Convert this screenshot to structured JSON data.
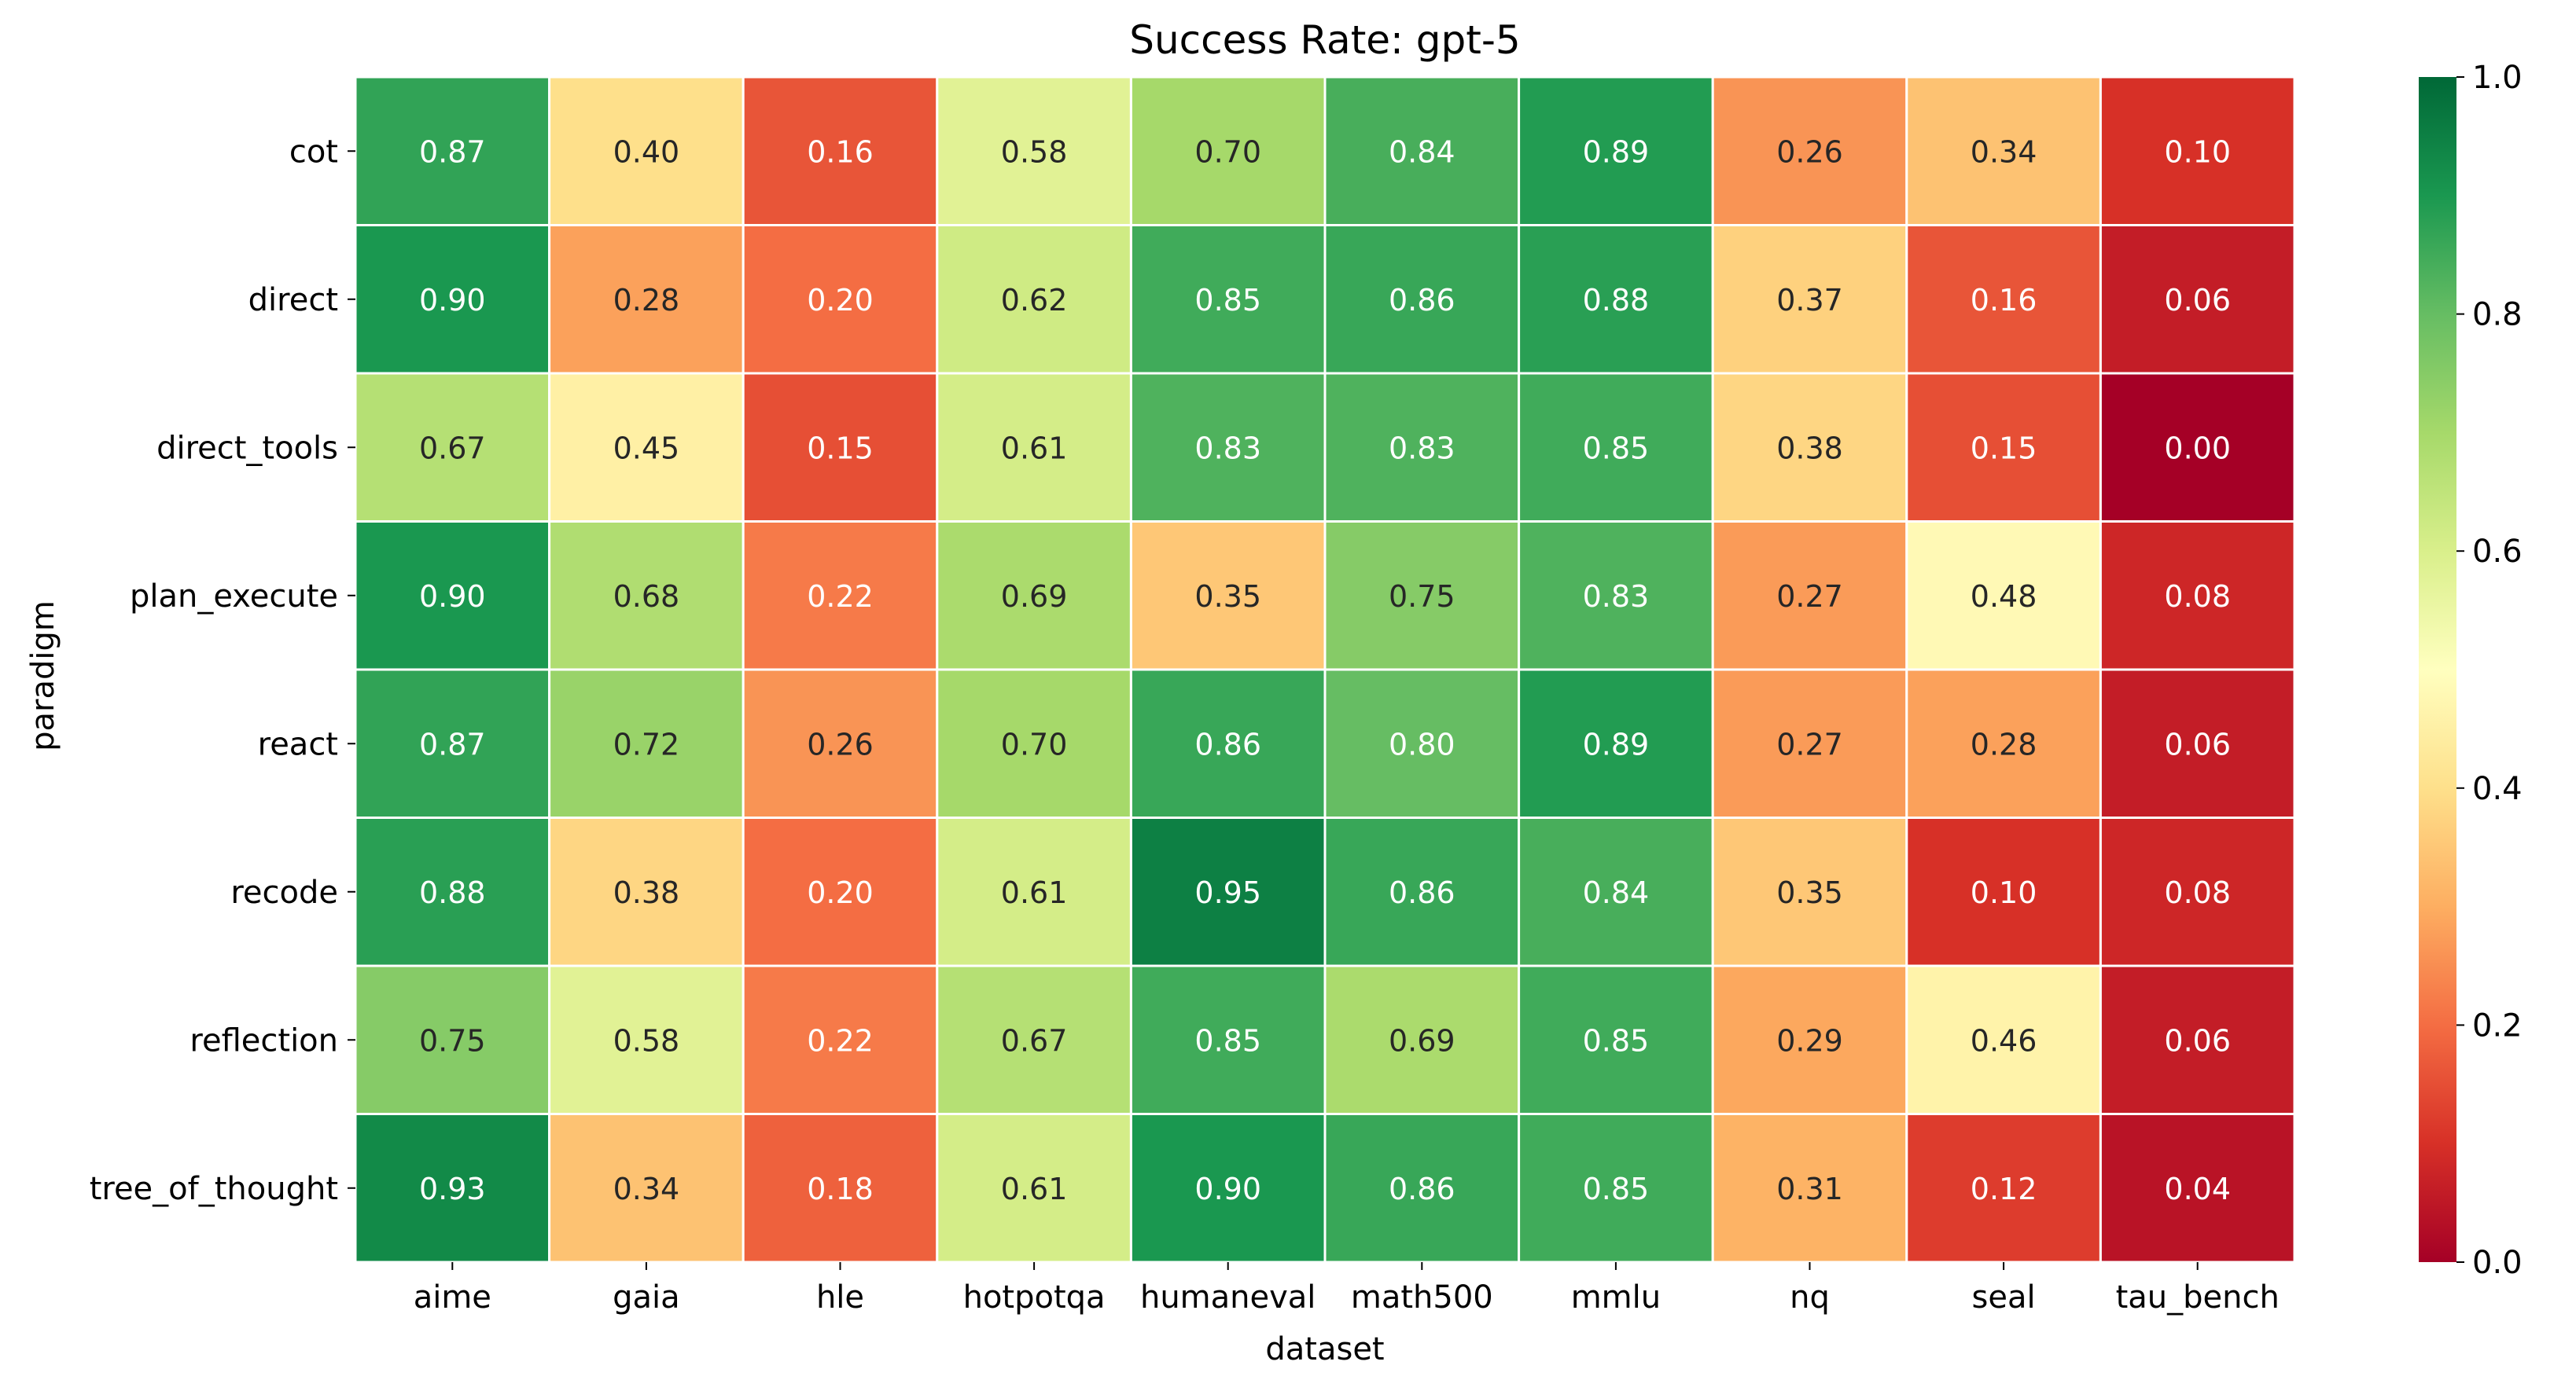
{
  "chart_data": {
    "type": "heatmap",
    "title": "Success Rate: gpt-5",
    "xlabel": "dataset",
    "ylabel": "paradigm",
    "x_categories": [
      "aime",
      "gaia",
      "hle",
      "hotpotqa",
      "humaneval",
      "math500",
      "mmlu",
      "nq",
      "seal",
      "tau_bench"
    ],
    "y_categories": [
      "cot",
      "direct",
      "direct_tools",
      "plan_execute",
      "react",
      "recode",
      "reflection",
      "tree_of_thought"
    ],
    "values": [
      [
        0.87,
        0.4,
        0.16,
        0.58,
        0.7,
        0.84,
        0.89,
        0.26,
        0.34,
        0.1
      ],
      [
        0.9,
        0.28,
        0.2,
        0.62,
        0.85,
        0.86,
        0.88,
        0.37,
        0.16,
        0.06
      ],
      [
        0.67,
        0.45,
        0.15,
        0.61,
        0.83,
        0.83,
        0.85,
        0.38,
        0.15,
        0.0
      ],
      [
        0.9,
        0.68,
        0.22,
        0.69,
        0.35,
        0.75,
        0.83,
        0.27,
        0.48,
        0.08
      ],
      [
        0.87,
        0.72,
        0.26,
        0.7,
        0.86,
        0.8,
        0.89,
        0.27,
        0.28,
        0.06
      ],
      [
        0.88,
        0.38,
        0.2,
        0.61,
        0.95,
        0.86,
        0.84,
        0.35,
        0.1,
        0.08
      ],
      [
        0.75,
        0.58,
        0.22,
        0.67,
        0.85,
        0.69,
        0.85,
        0.29,
        0.46,
        0.06
      ],
      [
        0.93,
        0.34,
        0.18,
        0.61,
        0.9,
        0.86,
        0.85,
        0.31,
        0.12,
        0.04
      ]
    ],
    "colorbar": {
      "colormap": "RdYlGn",
      "range": [
        0.0,
        1.0
      ],
      "ticks": [
        "0.0",
        "0.2",
        "0.4",
        "0.6",
        "0.8",
        "1.0"
      ]
    },
    "annotation_format": "2 decimals",
    "grid": false
  }
}
